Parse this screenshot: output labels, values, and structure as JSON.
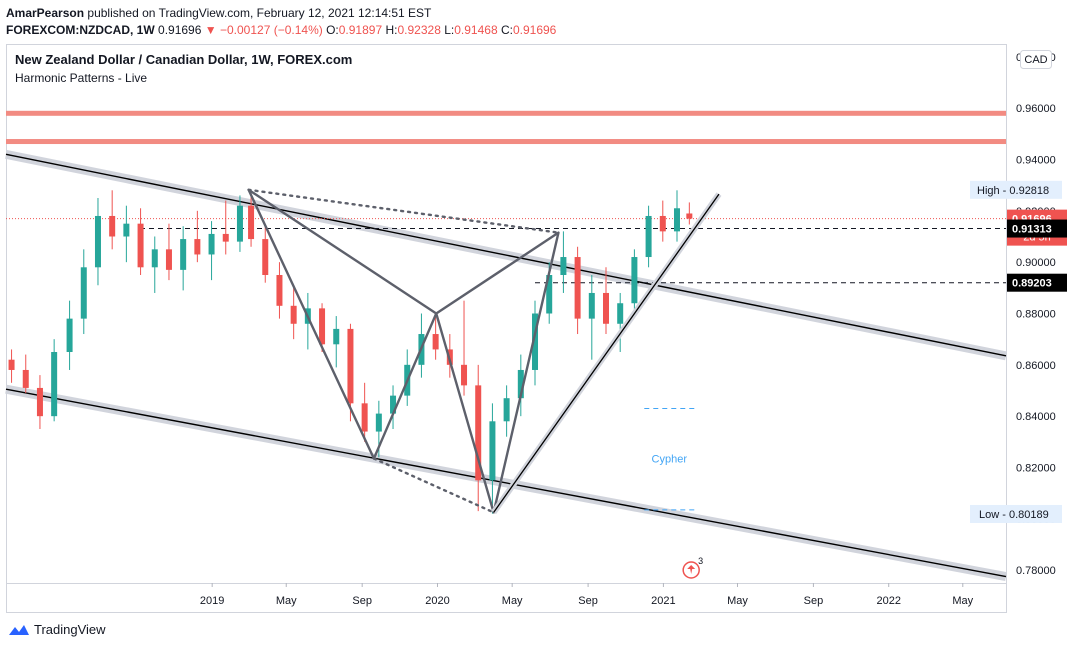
{
  "header": {
    "author": "AmarPearson",
    "published": "published on TradingView.com, February 12, 2021 12:14:51 EST",
    "symbol": "FOREXCOM:NZDCAD, 1W",
    "last": "0.91696",
    "change_arrow": "▼",
    "change": "−0.00127 (−0.14%)",
    "o_label": "O:",
    "o_value": "0.91897",
    "h_label": "H:",
    "h_value": "0.92328",
    "l_label": "L:",
    "l_value": "0.91468",
    "c_label": "C:",
    "c_value": "0.91696"
  },
  "footer": {
    "brand": "TradingView"
  },
  "colors": {
    "up": "#26a69a",
    "down": "#ef5350",
    "pattern": "#5d606b",
    "channel": "#000000",
    "channel_band": "#d1d4dc",
    "resistance": "#f28b82",
    "cypher": "#42a5f5"
  },
  "chart_data": {
    "type": "candlestick",
    "title": "New Zealand Dollar / Canadian Dollar, 1W, FOREX.com",
    "subtitle": "Harmonic Patterns - Live",
    "currency": "CAD",
    "ylim": [
      0.775,
      0.985
    ],
    "y_ticks": [
      "0.98000",
      "0.96000",
      "0.94000",
      "0.92000",
      "0.90000",
      "0.88000",
      "0.86000",
      "0.84000",
      "0.82000",
      "0.80000",
      "0.78000"
    ],
    "y_tick_values": [
      0.98,
      0.96,
      0.94,
      0.92,
      0.9,
      0.88,
      0.86,
      0.84,
      0.82,
      0.8,
      0.78
    ],
    "x_ticks": [
      "2019",
      "May",
      "Sep",
      "2020",
      "May",
      "Sep",
      "2021",
      "May",
      "Sep",
      "2022",
      "May"
    ],
    "x_tick_dates": [
      "2019-01-01",
      "2019-05-01",
      "2019-09-01",
      "2020-01-01",
      "2020-05-01",
      "2020-09-01",
      "2021-01-01",
      "2021-05-01",
      "2021-09-01",
      "2022-01-01",
      "2022-05-01"
    ],
    "x_range": [
      "2018-02-01",
      "2022-07-10"
    ],
    "price_labels": {
      "high_label": "High",
      "high_value": "0.92818",
      "current": "0.91696",
      "countdown": "2d 5h",
      "level1": "0.91313",
      "level2": "0.89203",
      "low_label": "Low",
      "low_value": "0.80189"
    },
    "resistance_levels": [
      0.958,
      0.947
    ],
    "dashed_levels": [
      0.9131,
      0.892
    ],
    "channel_upper": [
      [
        "2018-02-01",
        0.942
      ],
      [
        "2022-07-10",
        0.8635
      ]
    ],
    "channel_lower": [
      [
        "2018-02-01",
        0.8505
      ],
      [
        "2022-07-10",
        0.7775
      ]
    ],
    "trendline": [
      [
        "2020-04-01",
        0.8025
      ],
      [
        "2021-04-01",
        0.9265
      ]
    ],
    "harmonic_pattern": {
      "label": "Cypher",
      "points": [
        [
          "2019-03-01",
          0.9282
        ],
        [
          "2019-09-20",
          0.8235
        ],
        [
          "2019-12-30",
          0.88
        ],
        [
          "2020-04-01",
          0.8025
        ],
        [
          "2020-07-15",
          0.9115
        ]
      ],
      "dotted": [
        [
          [
            "2019-03-01",
            0.9282
          ],
          [
            "2020-07-15",
            0.9115
          ]
        ],
        [
          [
            "2019-09-20",
            0.8235
          ],
          [
            "2020-04-01",
            0.8025
          ]
        ]
      ]
    },
    "cypher_levels": [
      0.843,
      0.8035
    ],
    "cypher_range": [
      "2020-12-01",
      "2021-02-20"
    ],
    "event_marker": {
      "date": "2021-02-15",
      "count": "3"
    },
    "candles": [
      {
        "d": "2018-02-10",
        "o": 0.862,
        "h": 0.866,
        "l": 0.853,
        "c": 0.858
      },
      {
        "d": "2018-03-05",
        "o": 0.858,
        "h": 0.864,
        "l": 0.849,
        "c": 0.851
      },
      {
        "d": "2018-03-28",
        "o": 0.851,
        "h": 0.856,
        "l": 0.835,
        "c": 0.84
      },
      {
        "d": "2018-04-20",
        "o": 0.84,
        "h": 0.87,
        "l": 0.838,
        "c": 0.865
      },
      {
        "d": "2018-05-15",
        "o": 0.865,
        "h": 0.885,
        "l": 0.858,
        "c": 0.878
      },
      {
        "d": "2018-06-07",
        "o": 0.878,
        "h": 0.905,
        "l": 0.872,
        "c": 0.898
      },
      {
        "d": "2018-06-30",
        "o": 0.898,
        "h": 0.925,
        "l": 0.891,
        "c": 0.918
      },
      {
        "d": "2018-07-23",
        "o": 0.918,
        "h": 0.928,
        "l": 0.905,
        "c": 0.91
      },
      {
        "d": "2018-08-15",
        "o": 0.91,
        "h": 0.922,
        "l": 0.9,
        "c": 0.915
      },
      {
        "d": "2018-09-07",
        "o": 0.915,
        "h": 0.921,
        "l": 0.895,
        "c": 0.898
      },
      {
        "d": "2018-09-30",
        "o": 0.898,
        "h": 0.91,
        "l": 0.888,
        "c": 0.905
      },
      {
        "d": "2018-10-23",
        "o": 0.905,
        "h": 0.915,
        "l": 0.893,
        "c": 0.897
      },
      {
        "d": "2018-11-15",
        "o": 0.897,
        "h": 0.914,
        "l": 0.889,
        "c": 0.909
      },
      {
        "d": "2018-12-08",
        "o": 0.909,
        "h": 0.92,
        "l": 0.9,
        "c": 0.903
      },
      {
        "d": "2018-12-31",
        "o": 0.903,
        "h": 0.916,
        "l": 0.893,
        "c": 0.911
      },
      {
        "d": "2019-01-23",
        "o": 0.911,
        "h": 0.924,
        "l": 0.903,
        "c": 0.908
      },
      {
        "d": "2019-02-15",
        "o": 0.908,
        "h": 0.926,
        "l": 0.904,
        "c": 0.922
      },
      {
        "d": "2019-03-05",
        "o": 0.922,
        "h": 0.928,
        "l": 0.906,
        "c": 0.909
      },
      {
        "d": "2019-03-28",
        "o": 0.909,
        "h": 0.914,
        "l": 0.892,
        "c": 0.895
      },
      {
        "d": "2019-04-20",
        "o": 0.895,
        "h": 0.9,
        "l": 0.878,
        "c": 0.883
      },
      {
        "d": "2019-05-13",
        "o": 0.883,
        "h": 0.89,
        "l": 0.87,
        "c": 0.876
      },
      {
        "d": "2019-06-05",
        "o": 0.876,
        "h": 0.888,
        "l": 0.866,
        "c": 0.882
      },
      {
        "d": "2019-06-28",
        "o": 0.882,
        "h": 0.884,
        "l": 0.865,
        "c": 0.868
      },
      {
        "d": "2019-07-21",
        "o": 0.868,
        "h": 0.879,
        "l": 0.859,
        "c": 0.874
      },
      {
        "d": "2019-08-13",
        "o": 0.874,
        "h": 0.876,
        "l": 0.838,
        "c": 0.845
      },
      {
        "d": "2019-09-05",
        "o": 0.845,
        "h": 0.853,
        "l": 0.83,
        "c": 0.834
      },
      {
        "d": "2019-09-28",
        "o": 0.834,
        "h": 0.846,
        "l": 0.824,
        "c": 0.841
      },
      {
        "d": "2019-10-21",
        "o": 0.841,
        "h": 0.852,
        "l": 0.835,
        "c": 0.848
      },
      {
        "d": "2019-11-13",
        "o": 0.848,
        "h": 0.866,
        "l": 0.844,
        "c": 0.86
      },
      {
        "d": "2019-12-06",
        "o": 0.86,
        "h": 0.88,
        "l": 0.855,
        "c": 0.872
      },
      {
        "d": "2019-12-29",
        "o": 0.872,
        "h": 0.879,
        "l": 0.862,
        "c": 0.866
      },
      {
        "d": "2020-01-21",
        "o": 0.866,
        "h": 0.872,
        "l": 0.855,
        "c": 0.86
      },
      {
        "d": "2020-02-13",
        "o": 0.86,
        "h": 0.885,
        "l": 0.848,
        "c": 0.852
      },
      {
        "d": "2020-03-07",
        "o": 0.852,
        "h": 0.86,
        "l": 0.803,
        "c": 0.815
      },
      {
        "d": "2020-03-30",
        "o": 0.815,
        "h": 0.845,
        "l": 0.802,
        "c": 0.838
      },
      {
        "d": "2020-04-22",
        "o": 0.838,
        "h": 0.852,
        "l": 0.832,
        "c": 0.847
      },
      {
        "d": "2020-05-15",
        "o": 0.847,
        "h": 0.864,
        "l": 0.84,
        "c": 0.858
      },
      {
        "d": "2020-06-07",
        "o": 0.858,
        "h": 0.885,
        "l": 0.852,
        "c": 0.88
      },
      {
        "d": "2020-06-30",
        "o": 0.88,
        "h": 0.9,
        "l": 0.876,
        "c": 0.895
      },
      {
        "d": "2020-07-23",
        "o": 0.895,
        "h": 0.912,
        "l": 0.888,
        "c": 0.902
      },
      {
        "d": "2020-08-15",
        "o": 0.902,
        "h": 0.906,
        "l": 0.872,
        "c": 0.878
      },
      {
        "d": "2020-09-07",
        "o": 0.878,
        "h": 0.895,
        "l": 0.862,
        "c": 0.888
      },
      {
        "d": "2020-09-30",
        "o": 0.888,
        "h": 0.898,
        "l": 0.872,
        "c": 0.876
      },
      {
        "d": "2020-10-23",
        "o": 0.876,
        "h": 0.888,
        "l": 0.865,
        "c": 0.884
      },
      {
        "d": "2020-11-15",
        "o": 0.884,
        "h": 0.905,
        "l": 0.88,
        "c": 0.902
      },
      {
        "d": "2020-12-08",
        "o": 0.902,
        "h": 0.922,
        "l": 0.898,
        "c": 0.918
      },
      {
        "d": "2020-12-31",
        "o": 0.918,
        "h": 0.924,
        "l": 0.908,
        "c": 0.912
      },
      {
        "d": "2021-01-23",
        "o": 0.912,
        "h": 0.928,
        "l": 0.908,
        "c": 0.921
      },
      {
        "d": "2021-02-12",
        "o": 0.91897,
        "h": 0.92328,
        "l": 0.91468,
        "c": 0.91696
      }
    ]
  }
}
